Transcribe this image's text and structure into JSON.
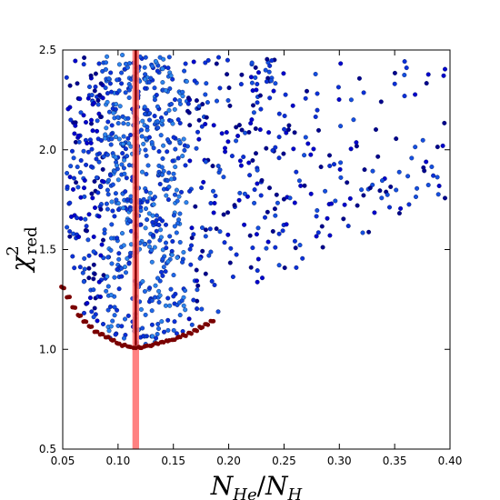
{
  "chart_data": {
    "type": "scatter",
    "title": "",
    "xlabel_main": "N",
    "xlabel_sub1": "He",
    "xlabel_sep": "/",
    "xlabel_main2": "N",
    "xlabel_sub2": "H",
    "ylabel_main": "χ",
    "ylabel_sup": "2",
    "ylabel_sub": "red",
    "xlim": [
      0.05,
      0.4
    ],
    "ylim": [
      0.5,
      2.5
    ],
    "x_ticks": [
      0.05,
      0.1,
      0.15,
      0.2,
      0.25,
      0.3,
      0.35,
      0.4
    ],
    "x_tick_labels": [
      "0.05",
      "0.10",
      "0.15",
      "0.20",
      "0.25",
      "0.30",
      "0.35",
      "0.40"
    ],
    "y_ticks": [
      0.5,
      1.0,
      1.5,
      2.0,
      2.5
    ],
    "y_tick_labels": [
      "0.5",
      "1.0",
      "1.5",
      "2.0",
      "2.5"
    ],
    "grid": false,
    "highlight_band": {
      "x_min": 0.113,
      "x_max": 0.119,
      "color": "#ff6b6b"
    },
    "vertical_line": {
      "x": 0.116,
      "color": "#8b0000"
    },
    "minimum_envelope": {
      "color": "#7a0000",
      "points": [
        [
          0.05,
          1.31
        ],
        [
          0.055,
          1.26
        ],
        [
          0.06,
          1.21
        ],
        [
          0.065,
          1.17
        ],
        [
          0.07,
          1.14
        ],
        [
          0.075,
          1.115
        ],
        [
          0.08,
          1.09
        ],
        [
          0.085,
          1.075
        ],
        [
          0.09,
          1.06
        ],
        [
          0.095,
          1.045
        ],
        [
          0.1,
          1.03
        ],
        [
          0.105,
          1.02
        ],
        [
          0.11,
          1.012
        ],
        [
          0.115,
          1.008
        ],
        [
          0.12,
          1.01
        ],
        [
          0.125,
          1.015
        ],
        [
          0.13,
          1.02
        ],
        [
          0.135,
          1.028
        ],
        [
          0.14,
          1.035
        ],
        [
          0.145,
          1.043
        ],
        [
          0.15,
          1.05
        ],
        [
          0.155,
          1.06
        ],
        [
          0.16,
          1.07
        ],
        [
          0.165,
          1.08
        ],
        [
          0.17,
          1.095
        ],
        [
          0.175,
          1.11
        ],
        [
          0.18,
          1.125
        ],
        [
          0.185,
          1.14
        ]
      ]
    },
    "scatter_colors": [
      "#00008b",
      "#0000cd",
      "#0a30d8",
      "#1450e0",
      "#1e6ae8",
      "#2d86ec"
    ],
    "scatter_columns": [
      [
        0.055,
        1.3,
        2.48,
        0.45
      ],
      [
        0.06,
        1.25,
        2.45,
        0.55
      ],
      [
        0.065,
        1.2,
        2.4,
        0.55
      ],
      [
        0.07,
        1.16,
        2.48,
        0.65
      ],
      [
        0.075,
        1.13,
        2.48,
        0.75
      ],
      [
        0.08,
        1.1,
        2.48,
        0.85
      ],
      [
        0.085,
        1.08,
        2.48,
        0.9
      ],
      [
        0.09,
        1.06,
        2.48,
        1.0
      ],
      [
        0.095,
        1.05,
        2.48,
        1.0
      ],
      [
        0.1,
        1.04,
        2.48,
        1.0
      ],
      [
        0.105,
        1.03,
        2.48,
        1.0
      ],
      [
        0.11,
        1.02,
        2.48,
        1.0
      ],
      [
        0.115,
        1.01,
        2.48,
        1.0
      ],
      [
        0.12,
        1.02,
        2.48,
        1.0
      ],
      [
        0.125,
        1.02,
        2.48,
        1.0
      ],
      [
        0.13,
        1.03,
        2.48,
        1.0
      ],
      [
        0.135,
        1.03,
        2.48,
        1.0
      ],
      [
        0.14,
        1.04,
        2.48,
        0.95
      ],
      [
        0.145,
        1.05,
        2.48,
        0.9
      ],
      [
        0.15,
        1.06,
        2.4,
        0.85
      ],
      [
        0.155,
        1.07,
        2.3,
        0.75
      ],
      [
        0.16,
        1.08,
        2.45,
        0.6
      ],
      [
        0.165,
        1.09,
        2.3,
        0.5
      ],
      [
        0.17,
        1.11,
        2.48,
        0.45
      ],
      [
        0.175,
        1.12,
        2.25,
        0.4
      ],
      [
        0.18,
        1.13,
        2.48,
        0.4
      ],
      [
        0.185,
        1.16,
        2.2,
        0.35
      ],
      [
        0.19,
        1.18,
        2.48,
        0.3
      ],
      [
        0.195,
        1.2,
        2.1,
        0.25
      ],
      [
        0.2,
        1.22,
        2.48,
        0.3
      ],
      [
        0.205,
        1.24,
        2.2,
        0.25
      ],
      [
        0.21,
        1.26,
        2.48,
        0.25
      ],
      [
        0.215,
        1.28,
        2.1,
        0.2
      ],
      [
        0.22,
        1.28,
        2.48,
        0.45
      ],
      [
        0.225,
        1.3,
        2.48,
        0.6
      ],
      [
        0.23,
        1.32,
        2.3,
        0.25
      ],
      [
        0.235,
        1.33,
        2.48,
        0.5
      ],
      [
        0.24,
        1.34,
        2.48,
        0.45
      ],
      [
        0.245,
        1.36,
        2.2,
        0.3
      ],
      [
        0.25,
        1.38,
        2.48,
        0.35
      ],
      [
        0.255,
        1.4,
        2.15,
        0.2
      ],
      [
        0.26,
        1.4,
        2.48,
        0.25
      ],
      [
        0.265,
        1.42,
        2.1,
        0.2
      ],
      [
        0.27,
        1.43,
        2.3,
        0.25
      ],
      [
        0.275,
        1.44,
        2.05,
        0.2
      ],
      [
        0.28,
        1.45,
        2.48,
        0.3
      ],
      [
        0.285,
        1.46,
        2.1,
        0.2
      ],
      [
        0.29,
        1.47,
        2.25,
        0.25
      ],
      [
        0.295,
        1.47,
        1.95,
        0.2
      ],
      [
        0.3,
        1.47,
        2.48,
        0.25
      ],
      [
        0.305,
        1.49,
        2.1,
        0.2
      ],
      [
        0.31,
        1.5,
        2.3,
        0.2
      ],
      [
        0.315,
        1.52,
        2.2,
        0.2
      ],
      [
        0.32,
        1.53,
        2.4,
        0.2
      ],
      [
        0.325,
        1.55,
        2.05,
        0.2
      ],
      [
        0.33,
        1.56,
        2.3,
        0.2
      ],
      [
        0.335,
        1.57,
        2.15,
        0.2
      ],
      [
        0.34,
        1.58,
        2.4,
        0.2
      ],
      [
        0.345,
        1.6,
        2.1,
        0.2
      ],
      [
        0.35,
        1.61,
        2.4,
        0.2
      ],
      [
        0.355,
        1.62,
        2.1,
        0.2
      ],
      [
        0.36,
        1.63,
        2.48,
        0.2
      ],
      [
        0.365,
        1.65,
        2.0,
        0.2
      ],
      [
        0.37,
        1.65,
        2.3,
        0.2
      ],
      [
        0.375,
        1.68,
        2.25,
        0.2
      ],
      [
        0.38,
        1.69,
        2.48,
        0.2
      ],
      [
        0.385,
        1.7,
        2.1,
        0.2
      ],
      [
        0.39,
        1.72,
        2.4,
        0.2
      ],
      [
        0.395,
        1.75,
        2.48,
        0.25
      ]
    ]
  }
}
